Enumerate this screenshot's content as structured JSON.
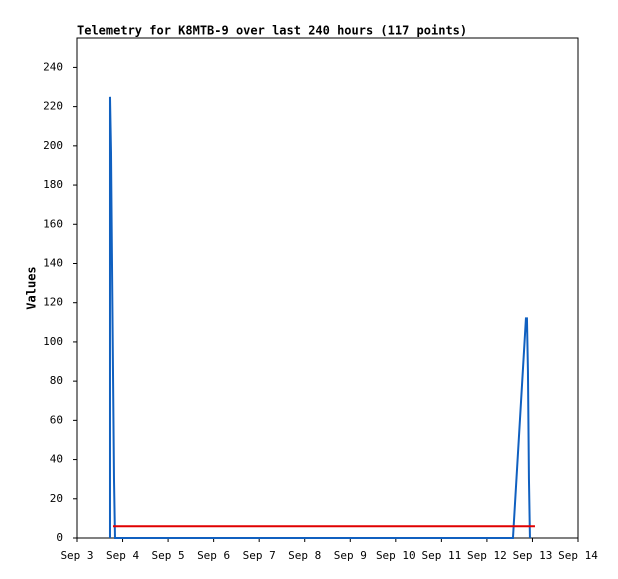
{
  "chart_data": {
    "type": "line",
    "title": "Telemetry for K8MTB-9 over last 240 hours (117 points)",
    "ylabel": "Values",
    "xlim": [
      3,
      14
    ],
    "xticks": [
      {
        "value": 3,
        "label": "Sep 3"
      },
      {
        "value": 4,
        "label": "Sep 4"
      },
      {
        "value": 5,
        "label": "Sep 5"
      },
      {
        "value": 6,
        "label": "Sep 6"
      },
      {
        "value": 7,
        "label": "Sep 7"
      },
      {
        "value": 8,
        "label": "Sep 8"
      },
      {
        "value": 9,
        "label": "Sep 9"
      },
      {
        "value": 10,
        "label": "Sep 10"
      },
      {
        "value": 11,
        "label": "Sep 11"
      },
      {
        "value": 12,
        "label": "Sep 12"
      },
      {
        "value": 13,
        "label": "Sep 13"
      },
      {
        "value": 14,
        "label": "Sep 14"
      }
    ],
    "ylim": [
      0,
      255
    ],
    "yticks": [
      0,
      20,
      40,
      60,
      80,
      100,
      120,
      140,
      160,
      180,
      200,
      220,
      240
    ],
    "series": [
      {
        "color": "#1060c0",
        "x": [
          3.724,
          3.724,
          3.746,
          3.768,
          3.79,
          3.812,
          3.834,
          12.572,
          12.857,
          12.879,
          12.901,
          12.923,
          12.945
        ],
        "values": [
          0,
          225,
          197,
          140,
          85,
          30,
          0,
          0,
          112,
          112,
          85,
          30,
          0
        ]
      },
      {
        "color": "#e00000",
        "x": [
          3.79,
          13.055
        ],
        "values": [
          6,
          6
        ]
      }
    ]
  }
}
